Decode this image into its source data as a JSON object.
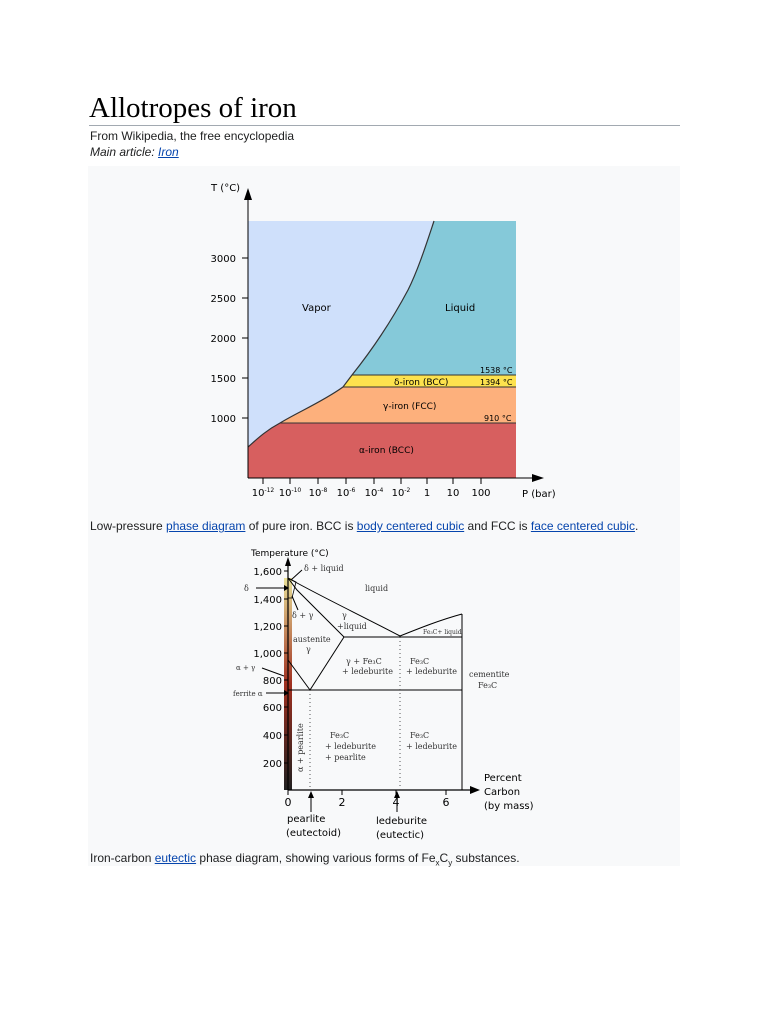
{
  "title": "Allotropes of iron",
  "tagline": "From Wikipedia, the free encyclopedia",
  "hatnote": {
    "prefix": "Main article: ",
    "link": "Iron"
  },
  "figure1": {
    "y_axis_label": "T (°C)",
    "x_axis_label": "P (bar)",
    "y_ticks": [
      "3000",
      "2500",
      "2000",
      "1500",
      "1000"
    ],
    "x_ticks": [
      {
        "base": "10",
        "exp": "-12"
      },
      {
        "base": "10",
        "exp": "-10"
      },
      {
        "base": "10",
        "exp": "-8"
      },
      {
        "base": "10",
        "exp": "-6"
      },
      {
        "base": "10",
        "exp": "-4"
      },
      {
        "base": "10",
        "exp": "-2"
      },
      {
        "base": "1",
        "exp": ""
      },
      {
        "base": "10",
        "exp": ""
      },
      {
        "base": "100",
        "exp": ""
      }
    ],
    "regions": {
      "vapor": "Vapor",
      "liquid": "Liquid",
      "delta": "δ-iron (BCC)",
      "gamma": "γ-iron (FCC)",
      "alpha": "α-iron (BCC)"
    },
    "temps": {
      "t1538": "1538 °C",
      "t1394": "1394 °C",
      "t910": "910 °C"
    },
    "colors": {
      "vapor": "#cfe0fb",
      "liquid": "#85c9d9",
      "delta": "#fde24e",
      "gamma": "#fdb07c",
      "alpha": "#d75f5f"
    }
  },
  "caption1": {
    "t1": "Low-pressure ",
    "l1": "phase diagram",
    "t2": " of pure iron. BCC is ",
    "l2": "body centered cubic",
    "t3": " and FCC is ",
    "l3": "face centered cubic",
    "t4": "."
  },
  "figure2": {
    "y_axis_label": "Temperature (°C)",
    "y_ticks": [
      "1,600",
      "1,400",
      "1,200",
      "1,000",
      "800",
      "600",
      "400",
      "200"
    ],
    "x_ticks": [
      "0",
      "2",
      "4",
      "6"
    ],
    "x_axis_label": [
      "Percent",
      "Carbon",
      "(by mass)"
    ],
    "left_labels": {
      "delta": "δ",
      "alpha_gamma": "α + γ",
      "ferrite": "ferrite α"
    },
    "regions": {
      "delta_liquid": "δ + liquid",
      "liquid": "liquid",
      "delta_gamma": "δ + γ",
      "gamma_liquid": [
        "γ",
        "+liquid"
      ],
      "fe3c_liquid": "Fe₃C+ liquid",
      "austenite": [
        "austenite",
        "γ"
      ],
      "gamma_fe3c": [
        "γ + Fe₃C",
        "+ ledeburite"
      ],
      "fe3c_led_top": [
        "Fe₃C",
        "+ ledeburite"
      ],
      "cementite": [
        "cementite",
        "Fe₃C"
      ],
      "alpha_pearlite": "α + pearlite",
      "fe3c_led_pearlite": [
        "Fe₃C",
        "+ ledeburite",
        "+ pearlite"
      ],
      "fe3c_led_bottom": [
        "Fe₃C",
        "+ ledeburite"
      ]
    },
    "bottom_labels": {
      "pearlite": [
        "pearlite",
        "(eutectoid)"
      ],
      "ledeburite": [
        "ledeburite",
        "(eutectic)"
      ]
    }
  },
  "caption2": {
    "t1": "Iron-carbon ",
    "l1": "eutectic",
    "t2": " phase diagram, showing various forms of Fe",
    "sub1": "x",
    "t3": "C",
    "sub2": "y",
    "t4": " substances."
  }
}
